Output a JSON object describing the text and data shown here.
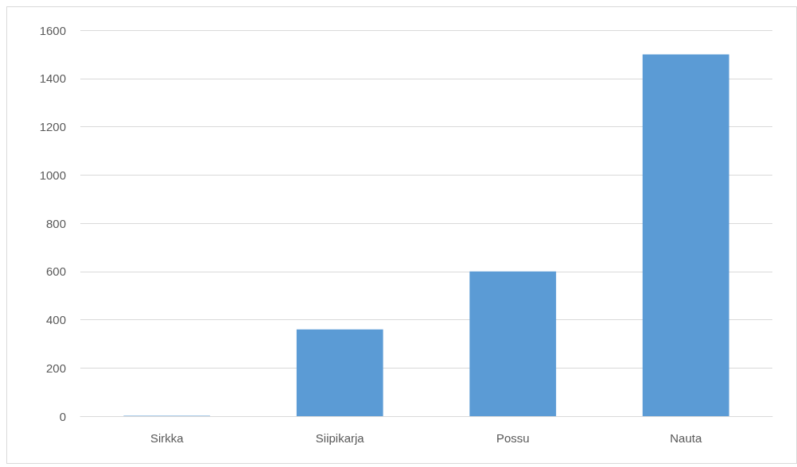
{
  "chart_data": {
    "type": "bar",
    "categories": [
      "Sirkka",
      "Siipikarja",
      "Possu",
      "Nauta"
    ],
    "values": [
      2,
      360,
      600,
      1500
    ],
    "color": "#5b9bd5",
    "ylim": [
      0,
      1600
    ],
    "yticks": [
      0,
      200,
      400,
      600,
      800,
      1000,
      1200,
      1400,
      1600
    ],
    "grid": "y"
  }
}
